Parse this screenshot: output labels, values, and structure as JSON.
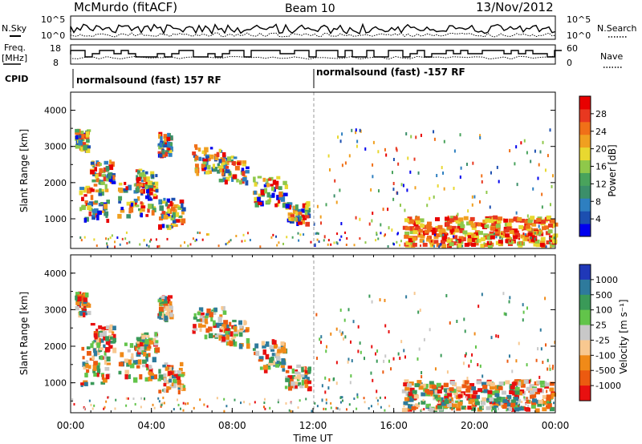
{
  "header": {
    "station": "McMurdo (fitACF)",
    "beam": "Beam 10",
    "date": "13/Nov/2012"
  },
  "top_panels": {
    "noise": {
      "left_label": "N.Sky",
      "right_label": "N.Search",
      "left_ticks": [
        "10^5",
        "10^0"
      ],
      "right_ticks": [
        "10^5",
        "10^0"
      ]
    },
    "freq": {
      "left_label_line1": "Freq.",
      "left_label_line2": "[MHz]",
      "right_label": "Nave",
      "left_ticks": [
        "18",
        "8"
      ],
      "right_ticks": [
        "60",
        "0"
      ]
    },
    "cpid": {
      "label": "CPID",
      "segments": [
        "normalsound (fast) 157 RF",
        "normalsound (fast) -157 RF"
      ]
    }
  },
  "chart_data": [
    {
      "type": "heatmap",
      "title": "",
      "ylabel": "Slant Range [km]",
      "xlabel": "",
      "ylim": [
        180,
        4500
      ],
      "xlim_hours": [
        0,
        24
      ],
      "y_ticks": [
        "1000",
        "2000",
        "3000",
        "4000"
      ],
      "colorbar": {
        "label": "Power [dB]",
        "ticks": [
          "4",
          "8",
          "12",
          "16",
          "20",
          "24",
          "28"
        ],
        "colors": [
          "#0000ee",
          "#1c4fb0",
          "#2e7fc0",
          "#3b8f6a",
          "#49a35c",
          "#8fc84a",
          "#e8d830",
          "#f0a020",
          "#f07018",
          "#e83820",
          "#e80000"
        ]
      }
    },
    {
      "type": "heatmap",
      "title": "",
      "ylabel": "Slant Range [km]",
      "xlabel": "Time UT",
      "ylim": [
        180,
        4500
      ],
      "xlim_hours": [
        0,
        24
      ],
      "y_ticks": [
        "1000",
        "2000",
        "3000",
        "4000"
      ],
      "x_ticks": [
        "00:00",
        "04:00",
        "08:00",
        "12:00",
        "16:00",
        "20:00",
        "00:00"
      ],
      "colorbar": {
        "label": "Velocity [m s⁻¹]",
        "ticks": [
          "1000",
          "500",
          "100",
          "25",
          "-25",
          "-100",
          "-500",
          "-1000"
        ],
        "colors": [
          "#2038b8",
          "#2e7a9c",
          "#3a9a58",
          "#62c44a",
          "#c8c8c8",
          "#f8c890",
          "#f08a18",
          "#ec5a10",
          "#e81010"
        ]
      }
    }
  ]
}
